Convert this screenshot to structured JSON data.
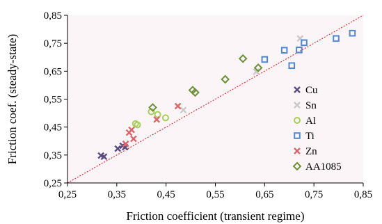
{
  "chart_data": {
    "type": "scatter",
    "title": "",
    "xlabel": "Friction coefficient (transient regime)",
    "ylabel": "Friction coef. (steady-state)",
    "xlim": [
      0.25,
      0.85
    ],
    "ylim": [
      0.25,
      0.85
    ],
    "xticks": [
      "0,25",
      "0,35",
      "0,45",
      "0,55",
      "0,65",
      "0,75",
      "0,85"
    ],
    "yticks": [
      "0,25",
      "0,35",
      "0,45",
      "0,55",
      "0,65",
      "0,75",
      "0,85"
    ],
    "tick_values": [
      0.25,
      0.35,
      0.45,
      0.55,
      0.65,
      0.75,
      0.85
    ],
    "grid": false,
    "plot_background": "#fbf5f7",
    "reference_line": {
      "style": "dotted",
      "color": "#e0303a",
      "x": [
        0.25,
        0.85
      ],
      "y": [
        0.25,
        0.85
      ]
    },
    "legend_position": "right",
    "series": [
      {
        "name": "Cu",
        "marker": "x",
        "color": "#5a4a7e",
        "x": [
          0.318,
          0.324,
          0.352,
          0.362,
          0.367
        ],
        "y": [
          0.348,
          0.344,
          0.373,
          0.383,
          0.378
        ]
      },
      {
        "name": "Sn",
        "marker": "x",
        "color": "#c8c8c8",
        "x": [
          0.485,
          0.633,
          0.722
        ],
        "y": [
          0.511,
          0.648,
          0.767
        ]
      },
      {
        "name": "Al",
        "marker": "circle",
        "color": "#a6cf5a",
        "x": [
          0.388,
          0.392,
          0.42,
          0.433,
          0.449
        ],
        "y": [
          0.462,
          0.458,
          0.505,
          0.495,
          0.483
        ]
      },
      {
        "name": "Ti",
        "marker": "square",
        "color": "#4f87d1",
        "x": [
          0.65,
          0.69,
          0.705,
          0.72,
          0.73,
          0.795,
          0.828
        ],
        "y": [
          0.692,
          0.725,
          0.67,
          0.726,
          0.752,
          0.767,
          0.786
        ]
      },
      {
        "name": "Zn",
        "marker": "x",
        "color": "#d9646a",
        "x": [
          0.368,
          0.375,
          0.38,
          0.384,
          0.431,
          0.474
        ],
        "y": [
          0.39,
          0.43,
          0.44,
          0.408,
          0.477,
          0.525
        ]
      },
      {
        "name": "AA1085",
        "marker": "diamond",
        "color": "#6d8f3a",
        "x": [
          0.423,
          0.504,
          0.509,
          0.57,
          0.606,
          0.637
        ],
        "y": [
          0.52,
          0.582,
          0.574,
          0.621,
          0.695,
          0.662
        ]
      }
    ]
  }
}
